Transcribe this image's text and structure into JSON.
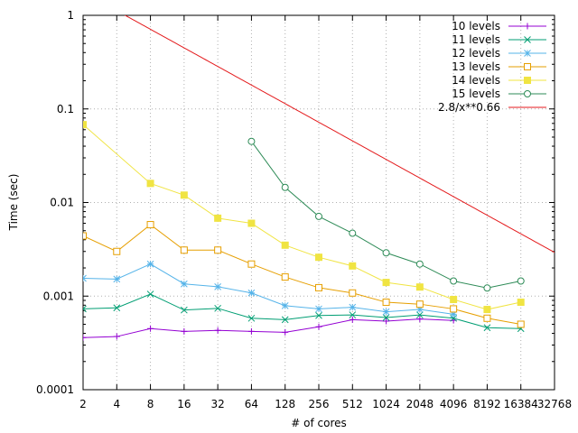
{
  "chart_data": {
    "type": "line",
    "xlabel": "# of cores",
    "ylabel": "Time (sec)",
    "x_scale": "log2",
    "y_scale": "log10",
    "xlim": [
      2,
      32768
    ],
    "ylim": [
      0.0001,
      1
    ],
    "grid": true,
    "legend_position": "top-right",
    "x_ticks": [
      "2",
      "4",
      "8",
      "16",
      "32",
      "64",
      "128",
      "256",
      "512",
      "1024",
      "2048",
      "4096",
      "8192",
      "16384",
      "32768"
    ],
    "y_ticks": [
      "0.0001",
      "0.001",
      "0.01",
      "0.1",
      "1"
    ],
    "series": [
      {
        "name": "10 levels",
        "color": "#9400d3",
        "marker": "plus",
        "points": [
          [
            2,
            0.00036
          ],
          [
            4,
            0.00037
          ],
          [
            8,
            0.00045
          ],
          [
            16,
            0.00042
          ],
          [
            32,
            0.00043
          ],
          [
            64,
            0.00042
          ],
          [
            128,
            0.00041
          ],
          [
            256,
            0.00047
          ],
          [
            512,
            0.00056
          ],
          [
            1024,
            0.00054
          ],
          [
            2048,
            0.00057
          ],
          [
            4096,
            0.00055
          ]
        ]
      },
      {
        "name": "11 levels",
        "color": "#009e73",
        "marker": "cross",
        "points": [
          [
            2,
            0.00073
          ],
          [
            4,
            0.00075
          ],
          [
            8,
            0.00105
          ],
          [
            16,
            0.00071
          ],
          [
            32,
            0.00074
          ],
          [
            64,
            0.00058
          ],
          [
            128,
            0.00056
          ],
          [
            256,
            0.00062
          ],
          [
            512,
            0.00063
          ],
          [
            1024,
            0.00059
          ],
          [
            2048,
            0.00063
          ],
          [
            4096,
            0.00058
          ],
          [
            8192,
            0.00046
          ],
          [
            16384,
            0.00045
          ]
        ]
      },
      {
        "name": "12 levels",
        "color": "#56b4e9",
        "marker": "star",
        "points": [
          [
            2,
            0.00155
          ],
          [
            4,
            0.00152
          ],
          [
            8,
            0.0022
          ],
          [
            16,
            0.00135
          ],
          [
            32,
            0.00126
          ],
          [
            64,
            0.00108
          ],
          [
            128,
            0.00079
          ],
          [
            256,
            0.00073
          ],
          [
            512,
            0.00076
          ],
          [
            1024,
            0.00068
          ],
          [
            2048,
            0.00072
          ],
          [
            4096,
            0.00064
          ]
        ]
      },
      {
        "name": "13 levels",
        "color": "#e69f00",
        "marker": "square-open",
        "points": [
          [
            2,
            0.0044
          ],
          [
            4,
            0.003
          ],
          [
            8,
            0.0058
          ],
          [
            16,
            0.0031
          ],
          [
            32,
            0.0031
          ],
          [
            64,
            0.0022
          ],
          [
            128,
            0.0016
          ],
          [
            256,
            0.00123
          ],
          [
            512,
            0.00108
          ],
          [
            1024,
            0.00086
          ],
          [
            2048,
            0.00082
          ],
          [
            4096,
            0.00073
          ],
          [
            8192,
            0.00058
          ],
          [
            16384,
            0.0005
          ]
        ]
      },
      {
        "name": "14 levels",
        "color": "#f0e442",
        "marker": "square-filled",
        "points": [
          [
            2,
            0.068
          ],
          [
            8,
            0.016
          ],
          [
            16,
            0.012
          ],
          [
            32,
            0.0068
          ],
          [
            64,
            0.006
          ],
          [
            128,
            0.0035
          ],
          [
            256,
            0.0026
          ],
          [
            512,
            0.0021
          ],
          [
            1024,
            0.0014
          ],
          [
            2048,
            0.00125
          ],
          [
            4096,
            0.00092
          ],
          [
            8192,
            0.00072
          ],
          [
            16384,
            0.00086
          ]
        ]
      },
      {
        "name": "15 levels",
        "color": "#2e8b57",
        "marker": "circle-open",
        "points": [
          [
            64,
            0.045
          ],
          [
            128,
            0.0145
          ],
          [
            256,
            0.0071
          ],
          [
            512,
            0.0047
          ],
          [
            1024,
            0.0029
          ],
          [
            2048,
            0.0022
          ],
          [
            4096,
            0.00145
          ],
          [
            8192,
            0.00122
          ],
          [
            16384,
            0.00145
          ]
        ]
      },
      {
        "name": "2.8/x**0.66",
        "color": "#e41a1c",
        "marker": "none",
        "function": {
          "a": 2.8,
          "b": 0.66
        }
      }
    ]
  }
}
